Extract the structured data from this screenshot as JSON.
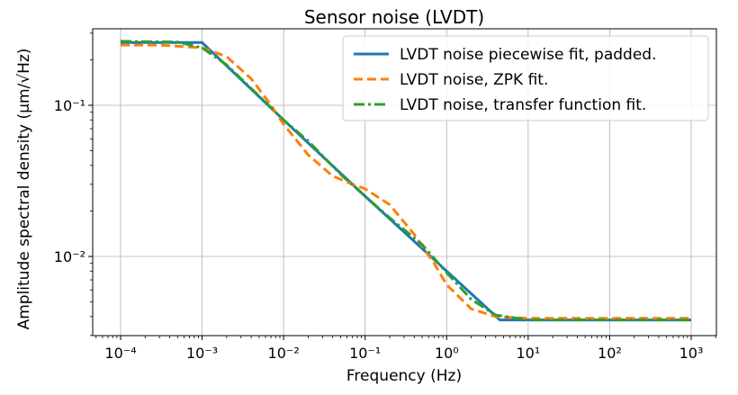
{
  "chart_data": {
    "type": "line",
    "title": "Sensor noise (LVDT)",
    "xlabel": "Frequency (Hz)",
    "ylabel": "Amplitude spectral density (μm/√Hz)",
    "xscale": "log",
    "yscale": "log",
    "xlim": [
      0.0001,
      1000
    ],
    "ylim": [
      0.0033,
      0.31
    ],
    "grid": true,
    "legend_position": "top-right",
    "x_tick_labels": [
      "10⁻⁴",
      "10⁻³",
      "10⁻²",
      "10⁻¹",
      "10⁰",
      "10¹",
      "10²",
      "10³"
    ],
    "y_tick_labels": [
      "10⁻¹",
      "10⁻²"
    ],
    "series": [
      {
        "name": "LVDT noise piecewise fit, padded.",
        "color": "#1f77b4",
        "style": "solid",
        "x": [
          0.0001,
          0.001,
          0.01,
          0.1,
          1,
          4.5,
          1000
        ],
        "y": [
          0.26,
          0.26,
          0.08,
          0.025,
          0.008,
          0.0038,
          0.0038
        ]
      },
      {
        "name": "LVDT noise, ZPK fit.",
        "color": "#ff7f0e",
        "style": "dashed",
        "x": [
          0.0001,
          0.0003,
          0.001,
          0.002,
          0.004,
          0.007,
          0.01,
          0.02,
          0.04,
          0.07,
          0.1,
          0.2,
          0.4,
          0.7,
          1,
          2,
          4,
          10,
          100,
          1000
        ],
        "y": [
          0.25,
          0.25,
          0.24,
          0.21,
          0.15,
          0.1,
          0.075,
          0.047,
          0.034,
          0.03,
          0.028,
          0.022,
          0.014,
          0.009,
          0.0065,
          0.0045,
          0.004,
          0.0039,
          0.0039,
          0.0039
        ]
      },
      {
        "name": "LVDT noise, transfer function fit.",
        "color": "#2ca02c",
        "style": "dashdot",
        "x": [
          0.0001,
          0.0005,
          0.001,
          0.002,
          0.005,
          0.01,
          0.02,
          0.05,
          0.1,
          0.2,
          0.5,
          1,
          2,
          4,
          10,
          100,
          1000
        ],
        "y": [
          0.265,
          0.262,
          0.24,
          0.185,
          0.115,
          0.08,
          0.058,
          0.035,
          0.025,
          0.018,
          0.012,
          0.0078,
          0.0052,
          0.0041,
          0.0038,
          0.0038,
          0.0038
        ]
      }
    ]
  }
}
